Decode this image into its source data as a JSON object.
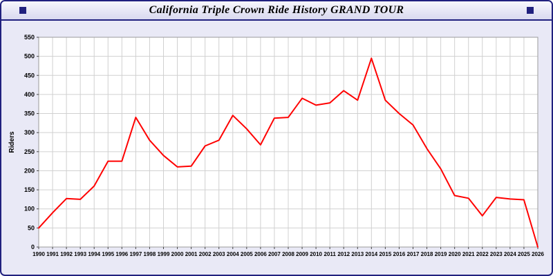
{
  "window": {
    "title": "California Triple Crown Ride History GRAND TOUR"
  },
  "colors": {
    "border": "#20207e",
    "panel_background": "#e9e9f6",
    "plot_background": "#ffffff",
    "grid": "#d0d0d0",
    "line": "#ff0000",
    "axis_text": "#000000"
  },
  "chart_data": {
    "type": "line",
    "title": "California Triple Crown Ride History GRAND TOUR",
    "xlabel": "",
    "ylabel": "Riders",
    "ylim": [
      0,
      550
    ],
    "ytick_step": 50,
    "grid": true,
    "legend_position": "none",
    "x": [
      1990,
      1991,
      1992,
      1993,
      1994,
      1995,
      1996,
      1997,
      1998,
      1999,
      2000,
      2001,
      2002,
      2003,
      2004,
      2005,
      2006,
      2007,
      2008,
      2009,
      2010,
      2011,
      2012,
      2013,
      2014,
      2015,
      2016,
      2017,
      2018,
      2019,
      2020,
      2021,
      2022,
      2023,
      2024,
      2025,
      2026
    ],
    "series": [
      {
        "name": "Riders",
        "color": "#ff0000",
        "values": [
          50,
          90,
          127,
          125,
          160,
          225,
          225,
          340,
          280,
          240,
          210,
          212,
          265,
          280,
          345,
          310,
          268,
          338,
          340,
          390,
          372,
          378,
          410,
          385,
          495,
          385,
          350,
          320,
          258,
          205,
          135,
          128,
          82,
          130,
          126,
          124,
          0
        ]
      }
    ]
  }
}
